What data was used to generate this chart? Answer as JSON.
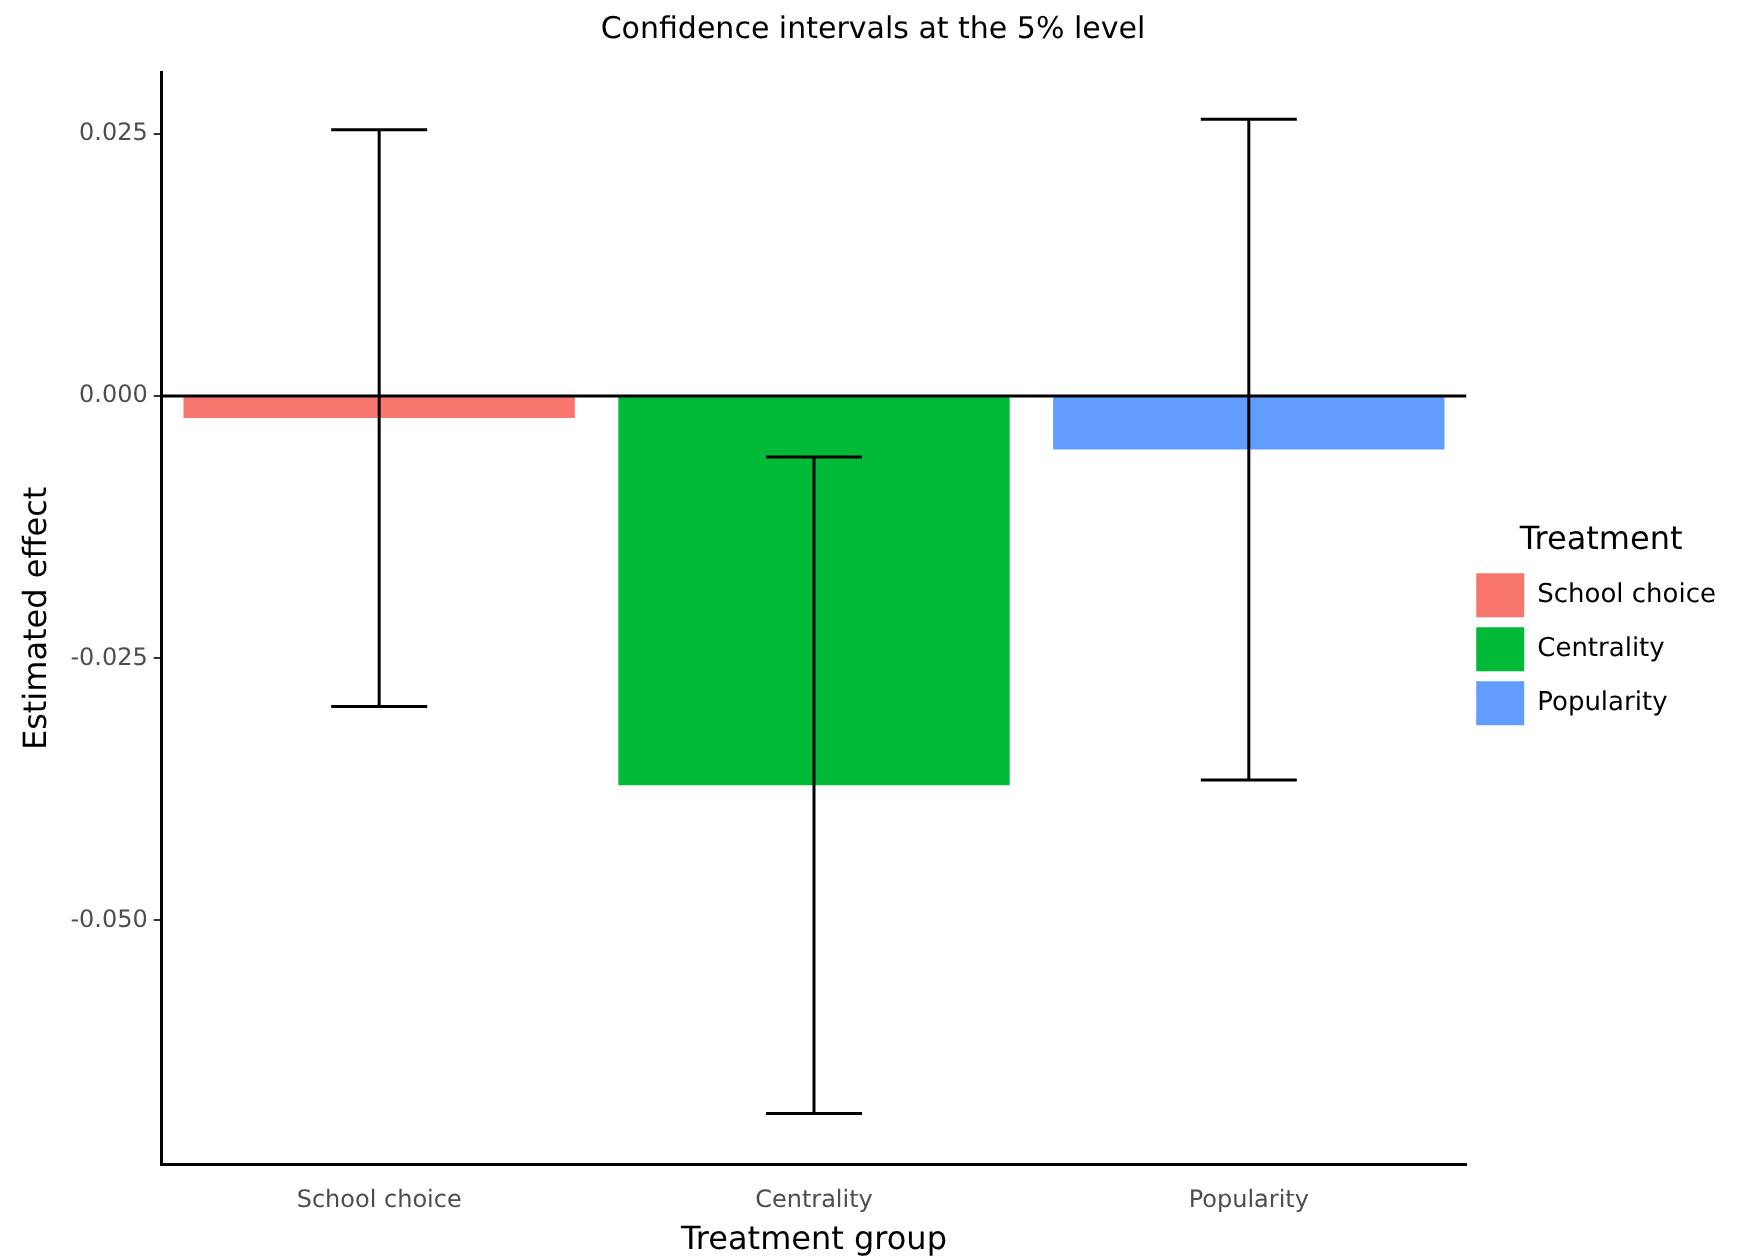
{
  "chart_data": {
    "type": "bar",
    "title": "Confidence intervals at the 5% level",
    "xlabel": "Treatment group",
    "ylabel": "Estimated effect",
    "legend_title": "Treatment",
    "legend": "right",
    "grid": false,
    "categories": [
      "School choice",
      "Centrality",
      "Popularity"
    ],
    "series": [
      {
        "name": "School choice",
        "color": "#f8766d",
        "values": [
          -0.0021,
          null,
          null
        ],
        "errors": [
          0.0275,
          null,
          null
        ]
      },
      {
        "name": "Centrality",
        "color": "#00ba38",
        "values": [
          null,
          -0.0371,
          null
        ],
        "errors": [
          null,
          0.0313,
          null
        ]
      },
      {
        "name": "Popularity",
        "color": "#619cff",
        "values": [
          null,
          null,
          -0.0051
        ],
        "errors": [
          null,
          null,
          0.0315
        ]
      }
    ],
    "ylim": [
      -0.0733,
      0.0309
    ],
    "yticks": [
      {
        "value": -0.05,
        "label": "-0.050"
      },
      {
        "value": -0.025,
        "label": "-0.025"
      },
      {
        "value": 0,
        "label": "0.000"
      },
      {
        "value": 0.025,
        "label": "0.025"
      }
    ],
    "ref_lines": [
      {
        "axis": "y",
        "value": 0,
        "color": "#000000"
      }
    ]
  }
}
